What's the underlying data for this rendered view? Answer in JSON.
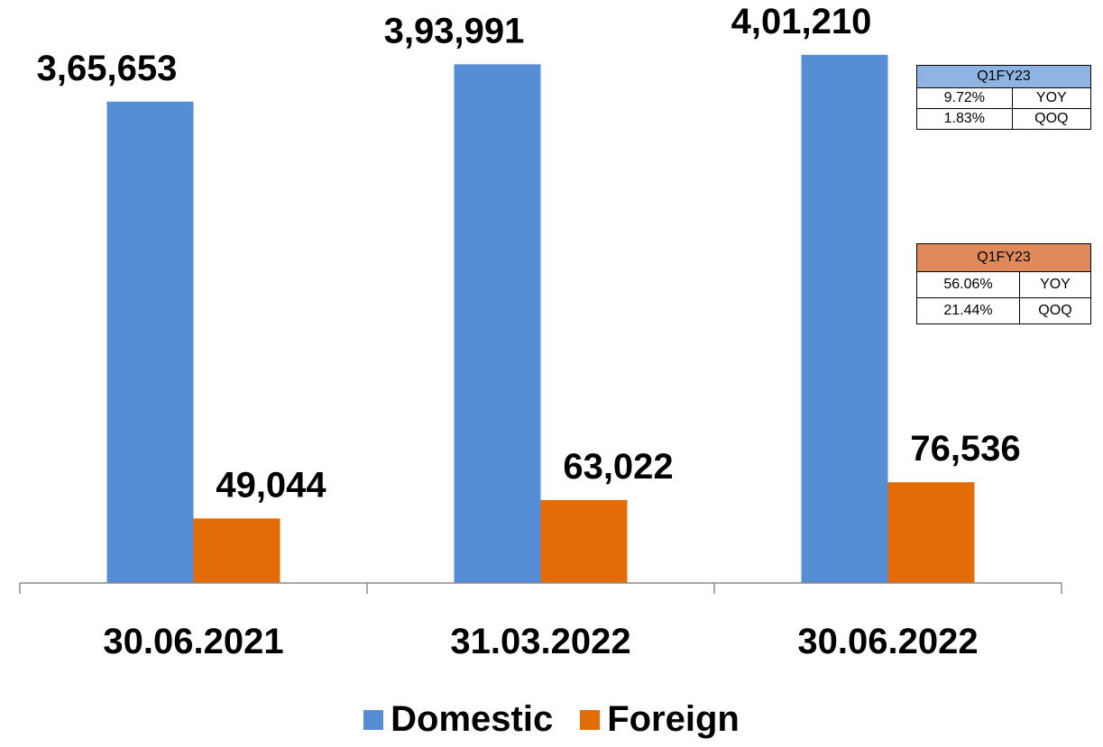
{
  "chart_data": {
    "type": "bar",
    "categories": [
      "30.06.2021",
      "31.03.2022",
      "30.06.2022"
    ],
    "series": [
      {
        "name": "Domestic",
        "color": "#558ed5",
        "values": [
          365653,
          393991,
          401210
        ],
        "labels": [
          "3,65,653",
          "3,93,991",
          "4,01,210"
        ]
      },
      {
        "name": "Foreign",
        "color": "#e36c09",
        "values": [
          49044,
          63022,
          76536
        ],
        "labels": [
          "49,044",
          "63,022",
          "76,536"
        ]
      }
    ],
    "ylim": [
      0,
      436000
    ],
    "grid": false,
    "legend": "bottom"
  },
  "tables": {
    "domestic": {
      "header": "Q1FY23",
      "header_color": "#8db4e2",
      "rows": [
        {
          "value": "9.72%",
          "label": "YOY"
        },
        {
          "value": "1.83%",
          "label": "QOQ"
        }
      ]
    },
    "foreign": {
      "header": "Q1FY23",
      "header_color": "#e0895a",
      "rows": [
        {
          "value": "56.06%",
          "label": "YOY"
        },
        {
          "value": "21.44%",
          "label": "QOQ"
        }
      ]
    }
  }
}
